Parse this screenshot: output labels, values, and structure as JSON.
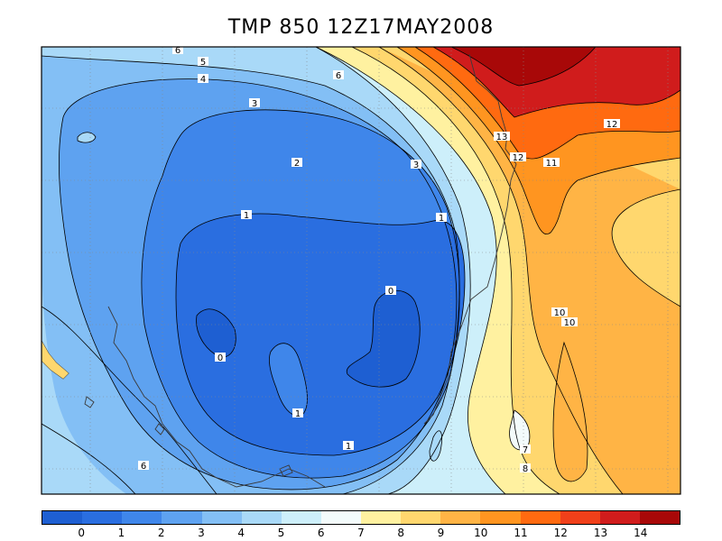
{
  "title": "TMP 850 12Z17MAY2008",
  "colors": {
    "bands": [
      "#1e5fd2",
      "#2a6ee0",
      "#3f86ea",
      "#5ea2f0",
      "#83bff5",
      "#a9d9f8",
      "#cdeffa",
      "#f3fbfb",
      "#fff1a0",
      "#ffd76e",
      "#ffb445",
      "#ff9520",
      "#ff6a10",
      "#f0401a",
      "#d01c1c",
      "#a80808"
    ],
    "coast": "#3a3a3a",
    "contour": "#000000",
    "grid": "#888888"
  },
  "colorbar": {
    "labels": [
      "0",
      "1",
      "2",
      "3",
      "4",
      "5",
      "6",
      "7",
      "8",
      "9",
      "10",
      "11",
      "12",
      "13",
      "14"
    ]
  },
  "contour_labels": [
    {
      "text": "6"
    },
    {
      "text": "5"
    },
    {
      "text": "4"
    },
    {
      "text": "3"
    },
    {
      "text": "2"
    },
    {
      "text": "1"
    },
    {
      "text": "0"
    },
    {
      "text": "3"
    },
    {
      "text": "1"
    },
    {
      "text": "0"
    },
    {
      "text": "1"
    },
    {
      "text": "1"
    },
    {
      "text": "6"
    },
    {
      "text": "13"
    },
    {
      "text": "12"
    },
    {
      "text": "11"
    },
    {
      "text": "12"
    },
    {
      "text": "10"
    },
    {
      "text": "10"
    },
    {
      "text": "7"
    },
    {
      "text": "8"
    },
    {
      "text": "6"
    }
  ]
}
